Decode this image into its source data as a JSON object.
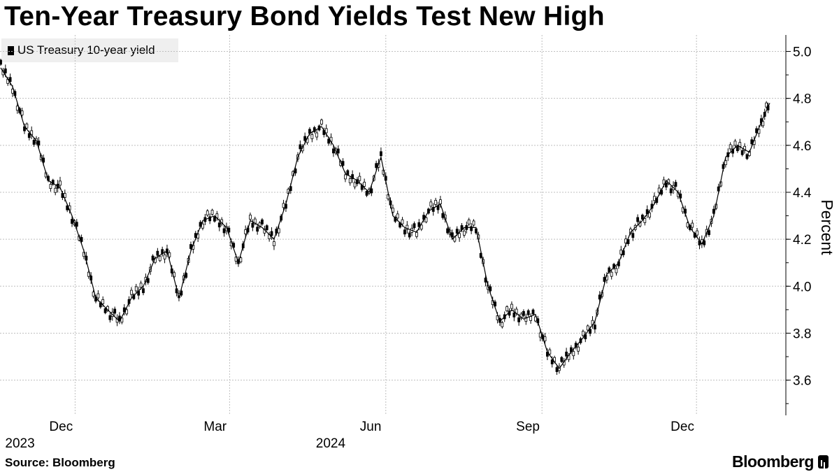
{
  "title": "Ten-Year Treasury Bond Yields Test New High",
  "legend": {
    "label": "US Treasury 10-year yield"
  },
  "source": "Source: Bloomberg",
  "brand": "Bloomberg",
  "chart_data": {
    "type": "line",
    "title": "Ten-Year Treasury Bond Yields Test New High",
    "ylabel": "Percent",
    "ylim": [
      3.45,
      5.07
    ],
    "yticks": [
      "3.6",
      "3.8",
      "4.0",
      "4.2",
      "4.4",
      "4.6",
      "4.8",
      "5.0"
    ],
    "xticks": [
      "Dec",
      "Mar",
      "Jun",
      "Sep",
      "Dec"
    ],
    "xticks_year": [
      "2023",
      "",
      "2024",
      "",
      ""
    ],
    "grid": true,
    "legend_position": "top-left",
    "series": [
      {
        "name": "US Treasury 10-year yield",
        "color": "#000000",
        "x": [
          "2023-10-19",
          "2023-10-26",
          "2023-11-02",
          "2023-11-09",
          "2023-11-16",
          "2023-11-23",
          "2023-11-30",
          "2023-12-07",
          "2023-12-14",
          "2023-12-21",
          "2023-12-28",
          "2024-01-04",
          "2024-01-11",
          "2024-01-18",
          "2024-01-25",
          "2024-02-01",
          "2024-02-08",
          "2024-02-15",
          "2024-02-22",
          "2024-02-29",
          "2024-03-07",
          "2024-03-14",
          "2024-03-21",
          "2024-03-28",
          "2024-04-04",
          "2024-04-11",
          "2024-04-18",
          "2024-04-25",
          "2024-05-02",
          "2024-05-09",
          "2024-05-16",
          "2024-05-23",
          "2024-05-30",
          "2024-06-06",
          "2024-06-13",
          "2024-06-20",
          "2024-06-27",
          "2024-07-04",
          "2024-07-11",
          "2024-07-18",
          "2024-07-25",
          "2024-08-01",
          "2024-08-08",
          "2024-08-15",
          "2024-08-22",
          "2024-08-29",
          "2024-09-05",
          "2024-09-12",
          "2024-09-19",
          "2024-09-26",
          "2024-10-03",
          "2024-10-10",
          "2024-10-17",
          "2024-10-24",
          "2024-10-31",
          "2024-11-07",
          "2024-11-14",
          "2024-11-21",
          "2024-11-28",
          "2024-12-05",
          "2024-12-12",
          "2024-12-19",
          "2024-12-26",
          "2025-01-02",
          "2025-01-09",
          "2025-01-14"
        ],
        "y": [
          4.93,
          4.85,
          4.68,
          4.62,
          4.45,
          4.42,
          4.3,
          4.15,
          3.95,
          3.9,
          3.85,
          3.95,
          4.0,
          4.12,
          4.15,
          3.95,
          4.15,
          4.28,
          4.3,
          4.25,
          4.1,
          4.28,
          4.25,
          4.2,
          4.35,
          4.55,
          4.65,
          4.68,
          4.6,
          4.48,
          4.45,
          4.4,
          4.55,
          4.3,
          4.25,
          4.23,
          4.32,
          4.35,
          4.2,
          4.25,
          4.25,
          4.0,
          3.85,
          3.9,
          3.86,
          3.88,
          3.72,
          3.65,
          3.72,
          3.78,
          3.85,
          4.05,
          4.1,
          4.23,
          4.28,
          4.35,
          4.45,
          4.4,
          4.25,
          4.18,
          4.3,
          4.55,
          4.6,
          4.57,
          4.7,
          4.78
        ]
      }
    ]
  }
}
